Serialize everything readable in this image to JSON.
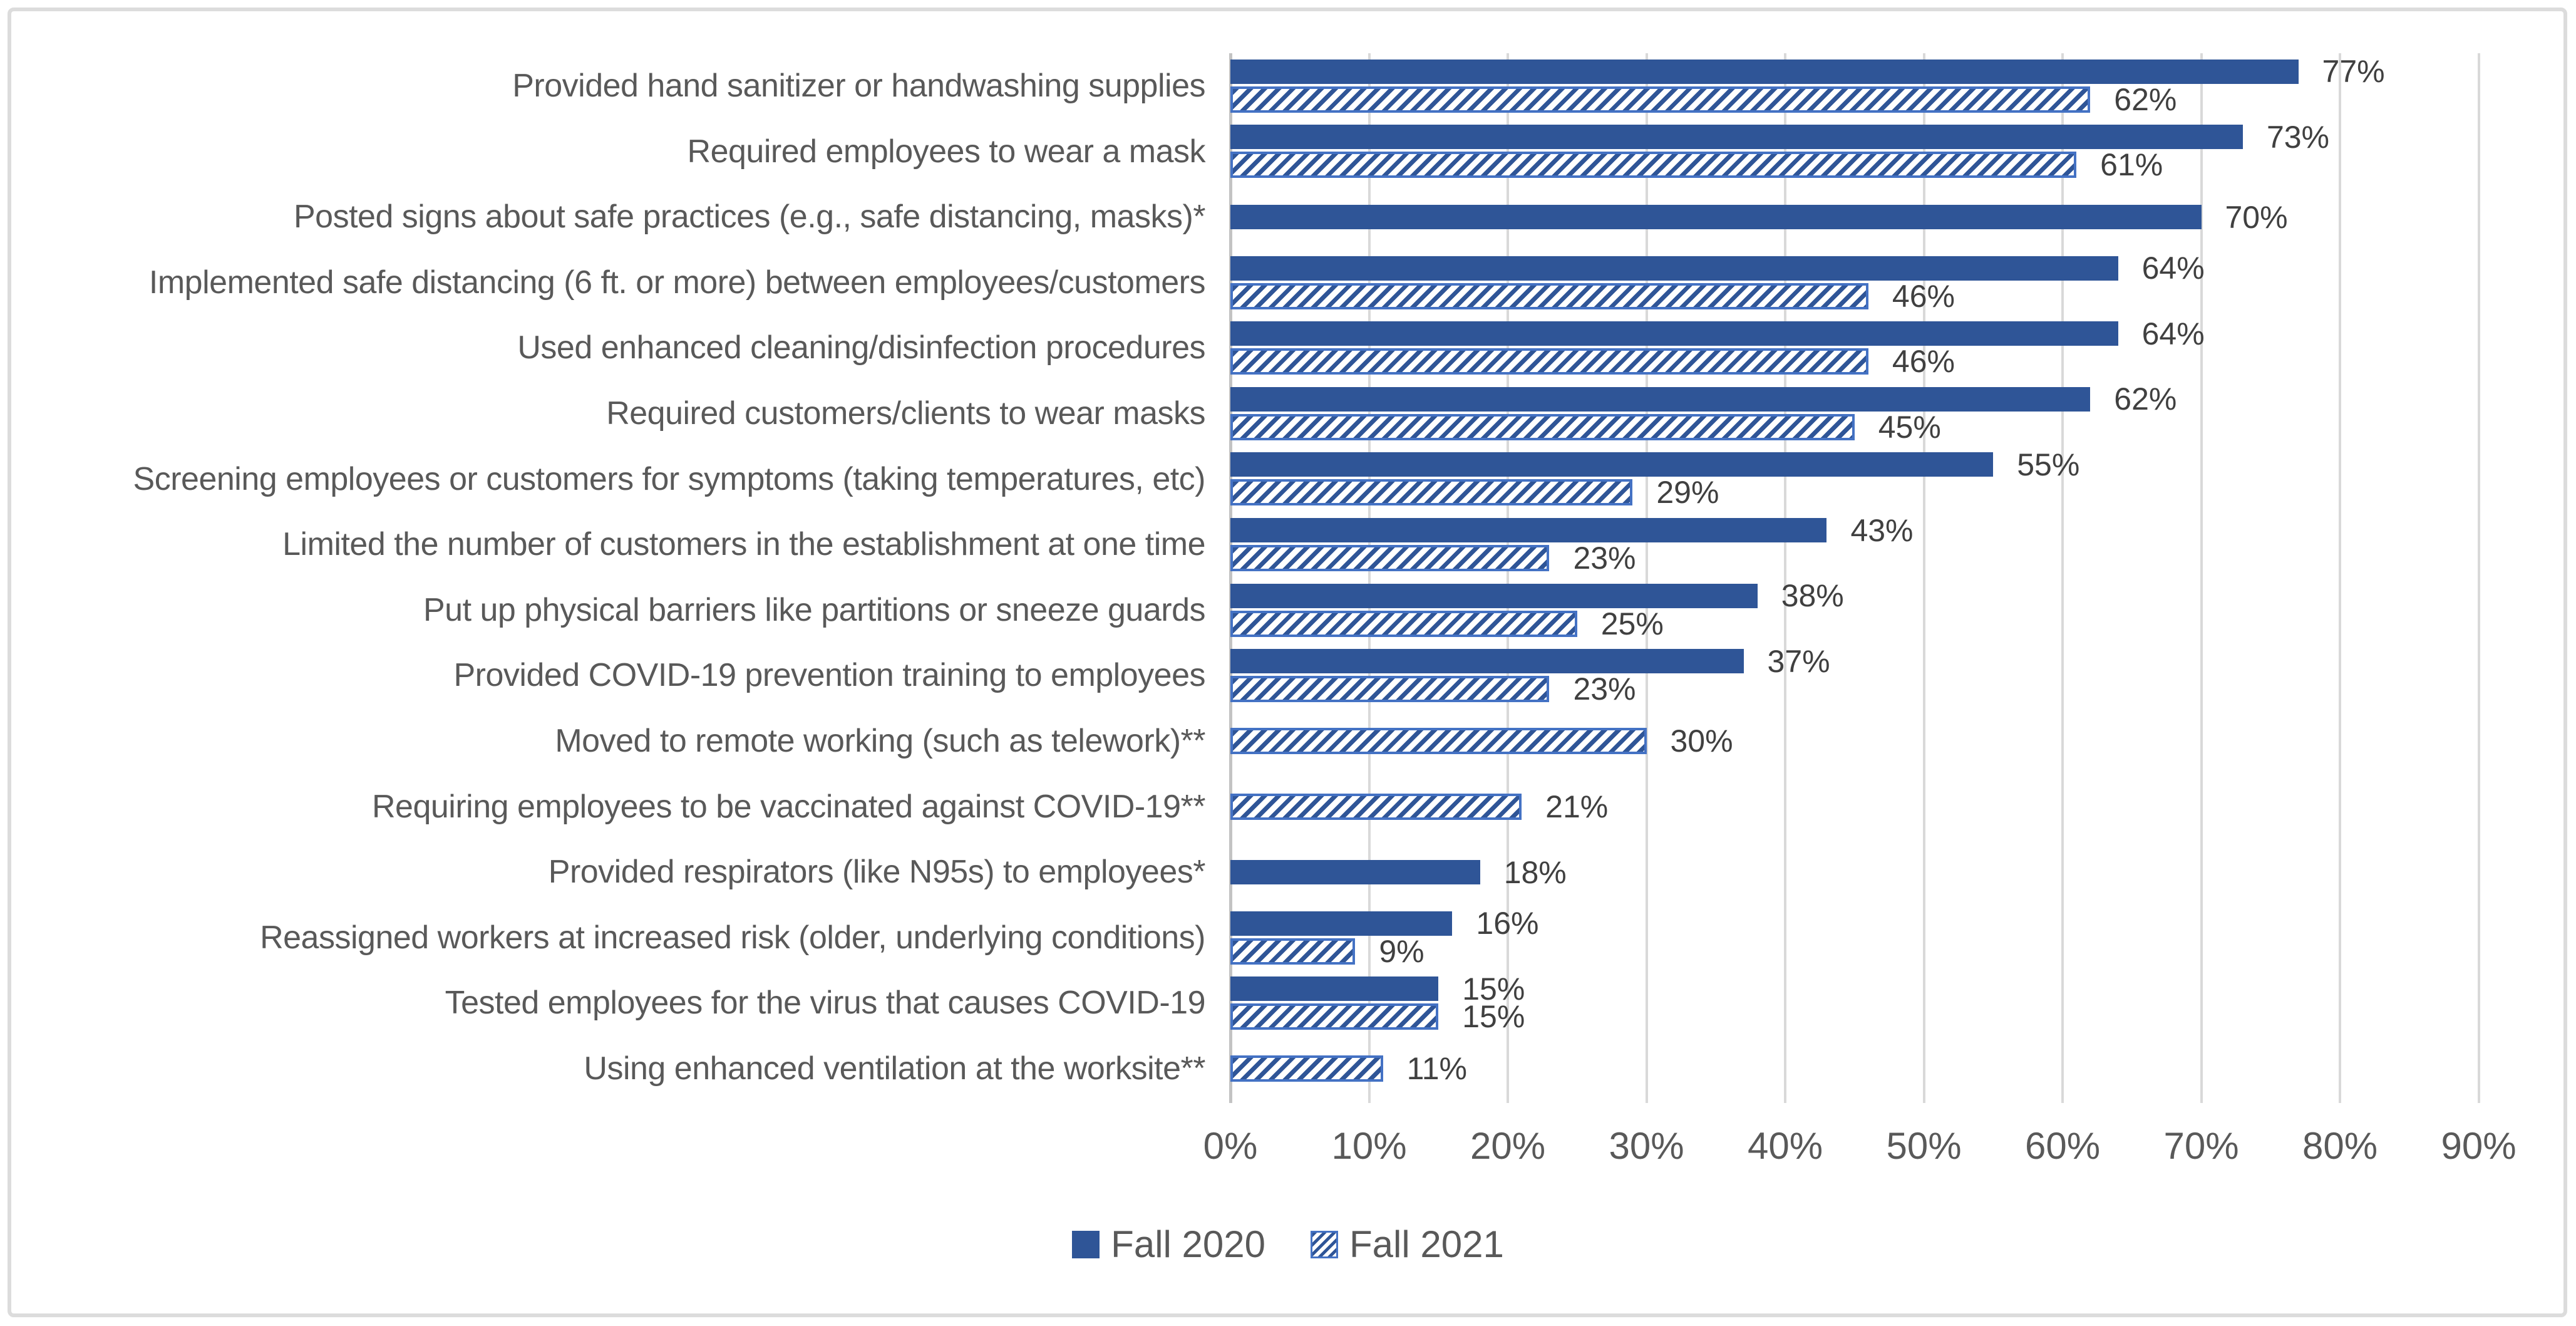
{
  "chart_data": {
    "type": "bar",
    "orientation": "horizontal",
    "unit": "%",
    "title": "",
    "categories": [
      "Provided hand sanitizer or handwashing supplies",
      "Required employees to wear a mask",
      "Posted signs about safe practices (e.g., safe distancing, masks)*",
      "Implemented safe distancing (6 ft. or more) between employees/customers",
      "Used enhanced cleaning/disinfection procedures",
      "Required customers/clients to wear masks",
      "Screening employees or customers for symptoms (taking temperatures, etc)",
      "Limited the number of customers in the establishment at one time",
      "Put up physical barriers like partitions or sneeze guards",
      "Provided COVID-19 prevention training to employees",
      "Moved to remote working (such as telework)**",
      "Requiring employees to be vaccinated against COVID-19**",
      "Provided respirators (like N95s) to employees*",
      "Reassigned workers at increased risk (older, underlying conditions)",
      "Tested employees for the virus that causes COVID-19",
      "Using enhanced ventilation at the worksite**"
    ],
    "series": [
      {
        "name": "Fall 2020",
        "style": "solid",
        "values": [
          77,
          73,
          70,
          64,
          64,
          62,
          55,
          43,
          38,
          37,
          null,
          null,
          18,
          16,
          15,
          null
        ]
      },
      {
        "name": "Fall 2021",
        "style": "hatched",
        "values": [
          62,
          61,
          null,
          46,
          46,
          45,
          29,
          23,
          25,
          23,
          30,
          21,
          null,
          9,
          15,
          11
        ]
      }
    ],
    "data_labels": [
      "77%",
      "62%",
      "73%",
      "61%",
      "70%",
      "64%",
      "46%",
      "64%",
      "46%",
      "62%",
      "45%",
      "55%",
      "29%",
      "43%",
      "23%",
      "38%",
      "25%",
      "37%",
      "23%",
      "30%",
      "21%",
      "18%",
      "16%",
      "9%",
      "15%",
      "15%",
      "11%"
    ],
    "x_axis": {
      "min": 0,
      "max": 90,
      "step": 10,
      "tick_labels": [
        "0%",
        "10%",
        "20%",
        "30%",
        "40%",
        "50%",
        "60%",
        "70%",
        "80%",
        "90%"
      ]
    },
    "grid": "vertical",
    "legend_position": "bottom",
    "colors": {
      "fall2020_fill": "#2F5597",
      "fall2021_stripe": "#2F5597",
      "fall2021_border": "#4472C4",
      "value_label_text": "#404040",
      "axis_text": "#595959",
      "category_text": "#595959",
      "gridline": "#D9D9D9",
      "frame_border": "#DCDCDC",
      "background": "#FFFFFF"
    }
  }
}
